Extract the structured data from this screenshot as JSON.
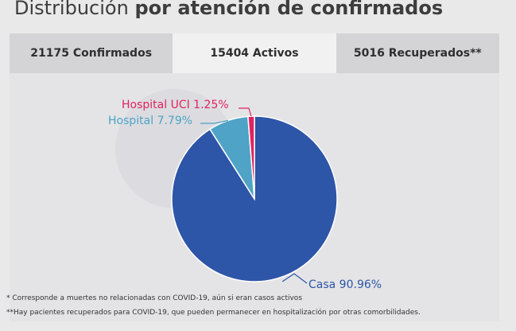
{
  "header": {
    "title_normal": "Distribución",
    "title_bold": "por atención de confirmados"
  },
  "tabs": [
    {
      "label": "21175 Confirmados",
      "active": false
    },
    {
      "label": "15404 Activos",
      "active": true
    },
    {
      "label": "5016 Recuperados**",
      "active": false
    }
  ],
  "chart_data": {
    "type": "pie",
    "title": "",
    "slices": [
      {
        "label": "Casa 90.96%",
        "value": 90.96,
        "color": "#2d55a8"
      },
      {
        "label": "Hospital 7.79%",
        "value": 7.79,
        "color": "#4ea3c6"
      },
      {
        "label": "Hospital UCI 1.25%",
        "value": 1.25,
        "color": "#e0245e"
      }
    ]
  },
  "footnotes": [
    "* Corresponde a muertes no relacionadas con COVID-19, aún si eran casos activos",
    "**Hay pacientes recuperados para COVID-19, que pueden permanecer en hospitalización por otras comorbilidades."
  ]
}
